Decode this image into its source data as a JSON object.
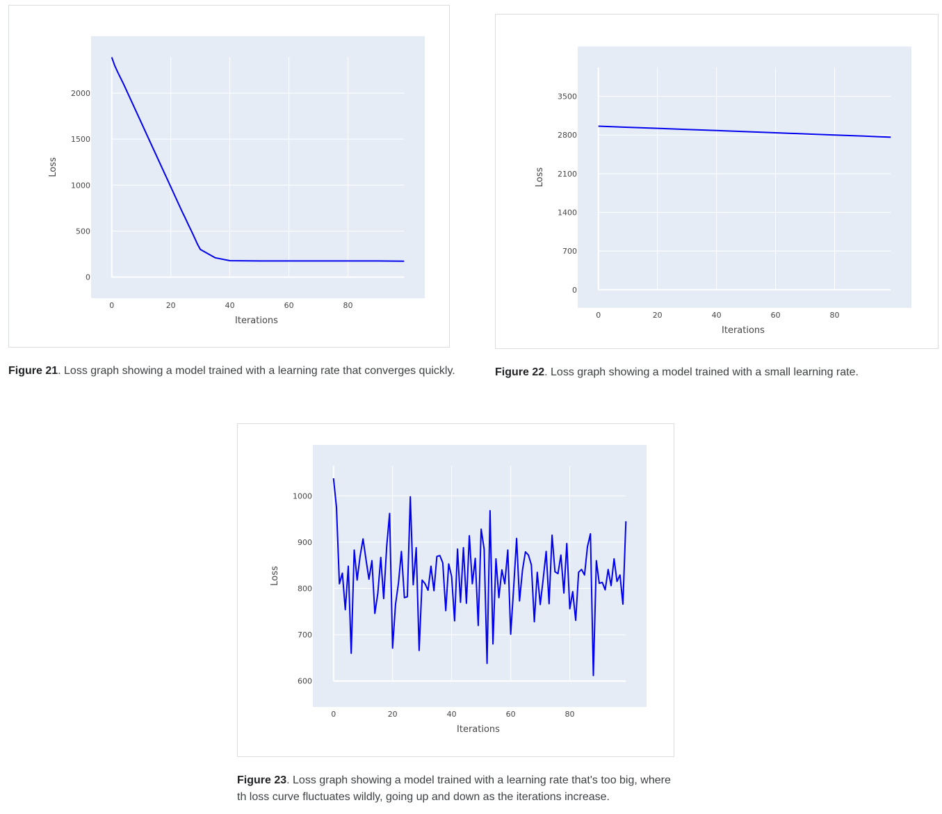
{
  "figures": [
    {
      "id": "fig21",
      "caption_label": "Figure 21",
      "caption_text": ". Loss graph showing a model trained with a learning rate that converges quickly.",
      "chart_data": {
        "type": "line",
        "title": "",
        "xlabel": "Iterations",
        "ylabel": "Loss",
        "xlim": [
          -7,
          106
        ],
        "ylim": [
          -230,
          2620
        ],
        "xticks": [
          0,
          20,
          40,
          60,
          80
        ],
        "yticks": [
          0,
          500,
          1000,
          1500,
          2000
        ],
        "line_color": "#0000ee",
        "grid": true,
        "x": [
          0,
          1,
          2,
          4,
          6,
          8,
          10,
          12,
          14,
          16,
          18,
          20,
          22,
          24,
          25,
          26,
          27,
          28,
          29,
          30,
          35,
          40,
          50,
          60,
          70,
          80,
          90,
          99
        ],
        "y": [
          2390,
          2300,
          2230,
          2100,
          1960,
          1820,
          1680,
          1540,
          1400,
          1260,
          1120,
          980,
          840,
          700,
          635,
          565,
          500,
          430,
          360,
          300,
          210,
          178,
          175,
          175,
          175,
          175,
          175,
          173
        ]
      }
    },
    {
      "id": "fig22",
      "caption_label": "Figure 22",
      "caption_text": ". Loss graph showing a model trained with a small learning rate.",
      "chart_data": {
        "type": "line",
        "title": "",
        "xlabel": "Iterations",
        "ylabel": "Loss",
        "xlim": [
          -7,
          106
        ],
        "ylim": [
          -330,
          4400
        ],
        "xticks": [
          0,
          20,
          40,
          60,
          80
        ],
        "yticks": [
          0,
          700,
          1400,
          2100,
          2800,
          3500
        ],
        "line_color": "#0000ee",
        "grid": true,
        "x": [
          0,
          10,
          20,
          30,
          40,
          50,
          60,
          70,
          80,
          90,
          99
        ],
        "y": [
          2960,
          2940,
          2920,
          2900,
          2880,
          2860,
          2840,
          2820,
          2800,
          2780,
          2760
        ]
      }
    },
    {
      "id": "fig23",
      "caption_label": "Figure 23",
      "caption_text": ". Loss graph showing a model trained with a learning rate that's too big, where th loss curve fluctuates wildly, going up and down as the iterations increase.",
      "chart_data": {
        "type": "line",
        "title": "",
        "xlabel": "Iterations",
        "ylabel": "Loss",
        "xlim": [
          -7,
          106
        ],
        "ylim": [
          544,
          1110
        ],
        "xticks": [
          0,
          20,
          40,
          60,
          80
        ],
        "yticks": [
          600,
          700,
          800,
          900,
          1000
        ],
        "line_color": "#0000ee",
        "grid": true,
        "x": [
          0,
          1,
          2,
          3,
          4,
          5,
          6,
          7,
          8,
          9,
          10,
          11,
          12,
          13,
          14,
          15,
          16,
          17,
          18,
          19,
          20,
          21,
          22,
          23,
          24,
          25,
          26,
          27,
          28,
          29,
          30,
          31,
          32,
          33,
          34,
          35,
          36,
          37,
          38,
          39,
          40,
          41,
          42,
          43,
          44,
          45,
          46,
          47,
          48,
          49,
          50,
          51,
          52,
          53,
          54,
          55,
          56,
          57,
          58,
          59,
          60,
          61,
          62,
          63,
          64,
          65,
          66,
          67,
          68,
          69,
          70,
          71,
          72,
          73,
          74,
          75,
          76,
          77,
          78,
          79,
          80,
          81,
          82,
          83,
          84,
          85,
          86,
          87,
          88,
          89,
          90,
          91,
          92,
          93,
          94,
          95,
          96,
          97,
          98,
          99
        ],
        "y": [
          1038,
          975,
          810,
          833,
          754,
          848,
          660,
          883,
          818,
          870,
          907,
          862,
          820,
          860,
          746,
          790,
          867,
          778,
          890,
          962,
          671,
          765,
          812,
          880,
          780,
          782,
          998,
          808,
          888,
          666,
          818,
          810,
          796,
          848,
          795,
          869,
          871,
          855,
          752,
          853,
          826,
          730,
          885,
          770,
          888,
          768,
          914,
          810,
          865,
          720,
          928,
          885,
          638,
          968,
          680,
          864,
          780,
          840,
          810,
          883,
          701,
          800,
          908,
          773,
          840,
          879,
          872,
          851,
          728,
          835,
          765,
          820,
          880,
          767,
          915,
          836,
          832,
          872,
          790,
          897,
          756,
          793,
          731,
          835,
          841,
          829,
          890,
          918,
          612,
          860,
          811,
          813,
          797,
          841,
          806,
          864,
          815,
          829,
          766,
          945
        ]
      }
    }
  ]
}
